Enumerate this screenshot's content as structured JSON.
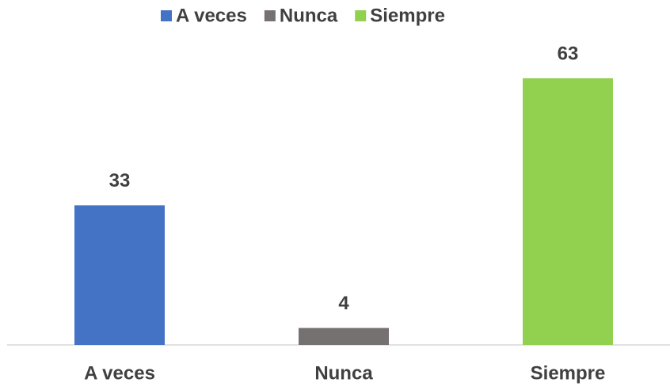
{
  "chart_data": {
    "type": "bar",
    "categories": [
      "A veces",
      "Nunca",
      "Siempre"
    ],
    "values": [
      33,
      4,
      63
    ],
    "colors": [
      "#4472c4",
      "#767171",
      "#92d050"
    ],
    "legend": "top"
  }
}
